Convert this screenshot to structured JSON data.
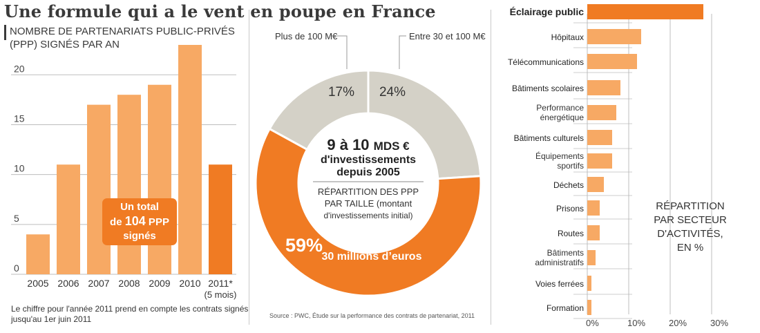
{
  "title": "Une formule qui a le vent en poupe en France",
  "bar_panel": {
    "subtitle": "NOMBRE DE PARTENARIATS PUBLIC-PRIVÉS (PPP) SIGNÉS PAR AN",
    "callout_line1": "Un total",
    "callout_line2_pre": "de ",
    "callout_line2_num": "104",
    "callout_line2_post": " PPP",
    "callout_line3": "signés",
    "note": "Le chiffre pour l'année 2011 prend en compte les contrats signés jusqu'au 1er juin 2011",
    "last_bar_sublabel": "(5 mois)"
  },
  "donut_panel": {
    "center_headline_num": "9 à 10",
    "center_headline_unit": "MDS €",
    "center_line2": "d'investissements",
    "center_line3": "depuis 2005",
    "center_sub1": "RÉPARTITION DES PPP",
    "center_sub2": "PAR TAILLE (montant",
    "center_sub3": "d'investissements initial)",
    "source": "Source : PWC, Étude sur la performance des contrats de partenariat, 2011"
  },
  "sector_panel": {
    "title_line1": "RÉPARTITION",
    "title_line2": "PAR SECTEUR",
    "title_line3": "D'ACTIVITÉS, EN %"
  },
  "colors": {
    "light_orange": "#f7a964",
    "dark_orange": "#f07b23",
    "gray": "#d4d1c7",
    "grid": "#bdbdbd"
  },
  "chart_data": [
    {
      "type": "bar",
      "categories": [
        "2005",
        "2006",
        "2007",
        "2008",
        "2009",
        "2010",
        "2011*"
      ],
      "values": [
        4,
        11,
        17,
        18,
        19,
        23,
        11
      ],
      "ylim": [
        0,
        23
      ],
      "yticks": [
        0,
        5,
        10,
        15,
        20
      ],
      "grid": true
    },
    {
      "type": "pie",
      "labels": [
        "Entre 30 et 100 M€",
        "Moins de 30 millions d'euros",
        "Plus de 100 M€"
      ],
      "values": [
        24,
        59,
        17
      ],
      "value_labels": [
        "24%",
        "59%",
        "17%"
      ]
    },
    {
      "type": "bar",
      "orientation": "horizontal",
      "categories": [
        "Éclairage public",
        "Hôpitaux",
        "Télécommunications",
        "Bâtiments scolaires",
        "Performance énergétique",
        "Bâtiments culturels",
        "Équipements sportifs",
        "Déchets",
        "Prisons",
        "Routes",
        "Bâtiments administratifs",
        "Voies ferrées",
        "Formation"
      ],
      "values": [
        28,
        13,
        12,
        8,
        7,
        6,
        6,
        4,
        3,
        3,
        2,
        1,
        1
      ],
      "xlim": [
        0,
        30
      ],
      "xticks": [
        "0%",
        "10%",
        "20%",
        "30%"
      ],
      "grid": true
    }
  ]
}
